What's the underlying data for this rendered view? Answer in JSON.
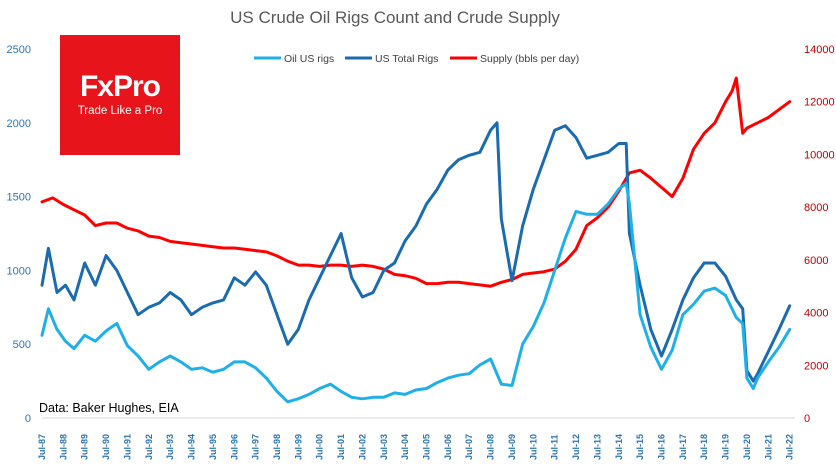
{
  "logo": {
    "brand": "FxPro",
    "tagline": "Trade Like a Pro",
    "color": "#E8141B"
  },
  "source_note": "Data: Baker Hughes, EIA",
  "chart_data": {
    "type": "line",
    "title": "US Crude Oil Rigs Count and Crude Supply",
    "legend_position": "top-center",
    "grid": false,
    "y_left": {
      "ylim": [
        0,
        2500
      ],
      "ticks": [
        "0",
        "500",
        "1000",
        "1500",
        "2000",
        "2500"
      ]
    },
    "y_right": {
      "ylim": [
        0,
        14000
      ],
      "ticks": [
        "0",
        "2000",
        "4000",
        "6000",
        "8000",
        "10000",
        "12000",
        "14000"
      ]
    },
    "x_range": [
      1987.5,
      2022.75
    ],
    "x_ticks": [
      "Jul-87",
      "Jul-88",
      "Jul-89",
      "Jul-90",
      "Jul-91",
      "Jul-92",
      "Jul-93",
      "Jul-94",
      "Jul-95",
      "Jul-96",
      "Jul-97",
      "Jul-98",
      "Jul-99",
      "Jul-00",
      "Jul-01",
      "Jul-02",
      "Jul-03",
      "Jul-04",
      "Jul-05",
      "Jul-06",
      "Jul-07",
      "Jul-08",
      "Jul-09",
      "Jul-10",
      "Jul-11",
      "Jul-12",
      "Jul-13",
      "Jul-14",
      "Jul-15",
      "Jul-16",
      "Jul-17",
      "Jul-18",
      "Jul-19",
      "Jul-20",
      "Jul-21",
      "Jul-22"
    ],
    "series": [
      {
        "name": "Oil US rigs",
        "axis": "left",
        "color": "#1FB0E8",
        "x": [
          1987.5,
          1987.8,
          1988.2,
          1988.6,
          1989.0,
          1989.5,
          1990.0,
          1990.5,
          1991.0,
          1991.5,
          1992.0,
          1992.5,
          1993.0,
          1993.5,
          1994.0,
          1994.5,
          1995.0,
          1995.5,
          1996.0,
          1996.5,
          1997.0,
          1997.5,
          1998.0,
          1998.5,
          1999.0,
          1999.5,
          2000.0,
          2000.5,
          2001.0,
          2001.5,
          2002.0,
          2002.5,
          2003.0,
          2003.5,
          2004.0,
          2004.5,
          2005.0,
          2005.5,
          2006.0,
          2006.5,
          2007.0,
          2007.5,
          2008.0,
          2008.5,
          2009.0,
          2009.5,
          2010.0,
          2010.5,
          2011.0,
          2011.5,
          2012.0,
          2012.5,
          2013.0,
          2013.5,
          2014.0,
          2014.5,
          2014.85,
          2015.0,
          2015.5,
          2016.0,
          2016.5,
          2017.0,
          2017.5,
          2018.0,
          2018.5,
          2019.0,
          2019.5,
          2020.0,
          2020.3,
          2020.5,
          2020.8,
          2021.0,
          2021.5,
          2022.0,
          2022.5
        ],
        "values": [
          560,
          740,
          600,
          520,
          470,
          560,
          520,
          590,
          640,
          490,
          420,
          330,
          380,
          420,
          380,
          330,
          340,
          310,
          330,
          380,
          380,
          340,
          270,
          180,
          110,
          130,
          160,
          200,
          230,
          180,
          140,
          130,
          140,
          140,
          170,
          160,
          190,
          200,
          240,
          270,
          290,
          300,
          360,
          400,
          230,
          220,
          500,
          620,
          780,
          1000,
          1220,
          1400,
          1380,
          1380,
          1450,
          1550,
          1590,
          1450,
          700,
          480,
          330,
          460,
          700,
          770,
          860,
          880,
          830,
          680,
          640,
          270,
          200,
          270,
          380,
          480,
          600
        ]
      },
      {
        "name": "US Total Rigs",
        "axis": "left",
        "color": "#1A6BB0",
        "x": [
          1987.5,
          1987.8,
          1988.2,
          1988.6,
          1989.0,
          1989.5,
          1990.0,
          1990.5,
          1991.0,
          1991.5,
          1992.0,
          1992.5,
          1993.0,
          1993.5,
          1994.0,
          1994.5,
          1995.0,
          1995.5,
          1996.0,
          1996.5,
          1997.0,
          1997.5,
          1998.0,
          1998.5,
          1999.0,
          1999.5,
          2000.0,
          2000.5,
          2001.0,
          2001.5,
          2002.0,
          2002.5,
          2003.0,
          2003.5,
          2004.0,
          2004.5,
          2005.0,
          2005.5,
          2006.0,
          2006.5,
          2007.0,
          2007.5,
          2008.0,
          2008.5,
          2008.8,
          2009.0,
          2009.5,
          2010.0,
          2010.5,
          2011.0,
          2011.5,
          2012.0,
          2012.5,
          2013.0,
          2013.5,
          2014.0,
          2014.5,
          2014.85,
          2015.0,
          2015.5,
          2016.0,
          2016.5,
          2017.0,
          2017.5,
          2018.0,
          2018.5,
          2019.0,
          2019.5,
          2020.0,
          2020.3,
          2020.5,
          2020.8,
          2021.0,
          2021.5,
          2022.0,
          2022.5
        ],
        "values": [
          900,
          1150,
          850,
          900,
          800,
          1050,
          900,
          1100,
          1000,
          850,
          700,
          750,
          780,
          850,
          800,
          700,
          750,
          780,
          800,
          950,
          900,
          990,
          900,
          700,
          500,
          600,
          800,
          950,
          1100,
          1250,
          950,
          820,
          850,
          1000,
          1050,
          1200,
          1300,
          1450,
          1550,
          1680,
          1750,
          1780,
          1800,
          1950,
          2000,
          1350,
          930,
          1300,
          1550,
          1750,
          1950,
          1980,
          1900,
          1760,
          1780,
          1800,
          1860,
          1860,
          1250,
          900,
          600,
          420,
          600,
          800,
          950,
          1050,
          1050,
          960,
          800,
          740,
          320,
          250,
          300,
          450,
          600,
          760
        ]
      },
      {
        "name": "Supply (bbls per day)",
        "axis": "right",
        "color": "#FF0000",
        "x": [
          1987.5,
          1988.0,
          1988.5,
          1989.0,
          1989.5,
          1990.0,
          1990.5,
          1991.0,
          1991.5,
          1992.0,
          1992.5,
          1993.0,
          1993.5,
          1994.0,
          1994.5,
          1995.0,
          1995.5,
          1996.0,
          1996.5,
          1997.0,
          1997.5,
          1998.0,
          1998.5,
          1999.0,
          1999.5,
          2000.0,
          2000.5,
          2001.0,
          2001.5,
          2002.0,
          2002.5,
          2003.0,
          2003.5,
          2004.0,
          2004.5,
          2005.0,
          2005.5,
          2006.0,
          2006.5,
          2007.0,
          2007.5,
          2008.0,
          2008.5,
          2009.0,
          2009.5,
          2010.0,
          2010.5,
          2011.0,
          2011.5,
          2012.0,
          2012.5,
          2013.0,
          2013.5,
          2014.0,
          2014.5,
          2015.0,
          2015.5,
          2016.0,
          2016.5,
          2017.0,
          2017.5,
          2018.0,
          2018.5,
          2019.0,
          2019.5,
          2019.8,
          2020.0,
          2020.3,
          2020.5,
          2021.0,
          2021.5,
          2022.0,
          2022.5
        ],
        "values": [
          8200,
          8350,
          8100,
          7900,
          7700,
          7300,
          7400,
          7400,
          7200,
          7100,
          6900,
          6850,
          6700,
          6650,
          6600,
          6550,
          6500,
          6450,
          6450,
          6400,
          6350,
          6300,
          6150,
          5950,
          5800,
          5800,
          5750,
          5800,
          5800,
          5750,
          5800,
          5750,
          5650,
          5450,
          5400,
          5300,
          5100,
          5100,
          5150,
          5150,
          5100,
          5050,
          5000,
          5150,
          5250,
          5450,
          5500,
          5550,
          5650,
          5950,
          6400,
          7300,
          7600,
          8000,
          8600,
          9300,
          9400,
          9100,
          8750,
          8400,
          9100,
          10200,
          10800,
          11200,
          12000,
          12400,
          12900,
          10800,
          11000,
          11200,
          11400,
          11700,
          12000
        ]
      }
    ]
  }
}
